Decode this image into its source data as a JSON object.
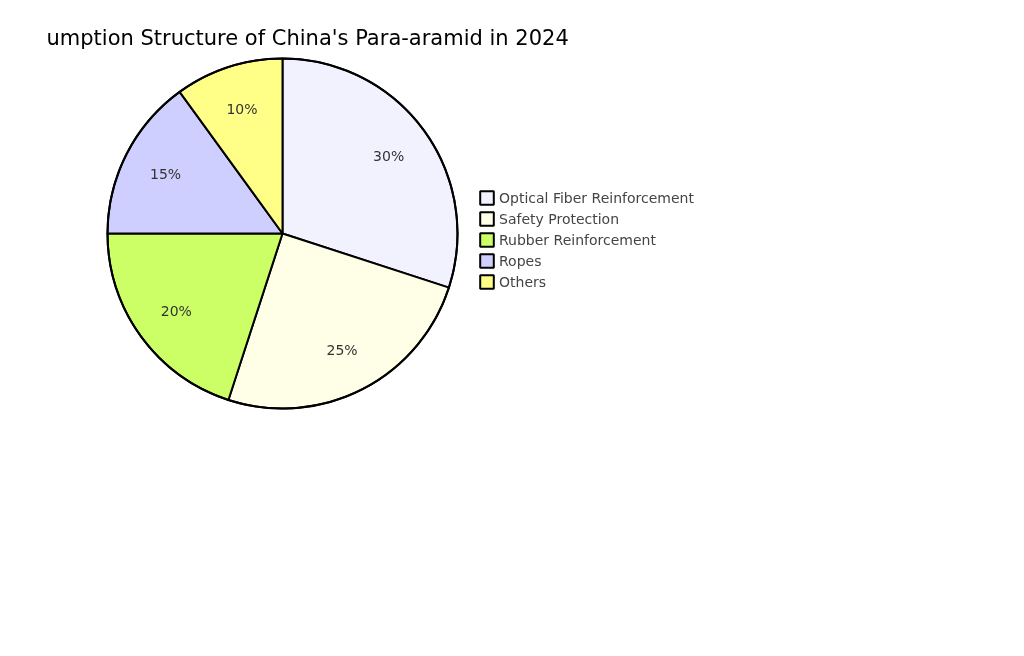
{
  "chart_data": {
    "type": "pie",
    "title": "umption Structure of China's Para-aramid in 2024",
    "categories": [
      "Optical Fiber Reinforcement",
      "Safety Protection",
      "Rubber Reinforcement",
      "Ropes",
      "Others"
    ],
    "values": [
      30,
      25,
      20,
      15,
      10
    ],
    "colors": [
      "#f2f2ff",
      "#ffffe8",
      "#ccff66",
      "#cfcfff",
      "#ffff88"
    ],
    "value_labels": [
      "30%",
      "25%",
      "20%",
      "15%",
      "10%"
    ],
    "legend": "right"
  }
}
